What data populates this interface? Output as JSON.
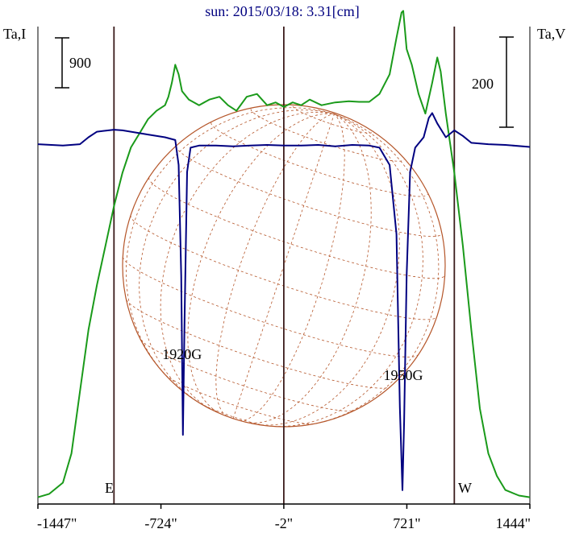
{
  "title": "sun: 2015/03/18: 3.31[cm]",
  "left_axis_label": "Ta,I",
  "right_axis_label": "Ta,V",
  "left_scale_label": "900",
  "right_scale_label": "200",
  "east_label": "E",
  "west_label": "W",
  "colors": {
    "intensity": "#1a9a1a",
    "polarization": "#000080",
    "limb_lines": "#3b1c1c",
    "disk": "#b5562a",
    "axis": "#000000",
    "title": "#000080"
  },
  "chart_data": {
    "type": "line",
    "title": "sun: 2015/03/18: 3.31[cm]",
    "x_unit": "arcsec",
    "xlim": [
      -1447,
      1444
    ],
    "x_ticks": [
      {
        "value": -1447,
        "label": "-1447\""
      },
      {
        "value": -724,
        "label": "-724\""
      },
      {
        "value": -2,
        "label": "-2\""
      },
      {
        "value": 721,
        "label": "721\""
      },
      {
        "value": 1444,
        "label": "1444\""
      }
    ],
    "vertical_lines": [
      -1000,
      -2,
      1000
    ],
    "scale_bars": {
      "left": 900,
      "right": 200
    },
    "annotations": [
      {
        "text": "1920G",
        "x": -600
      },
      {
        "text": "1950G",
        "x": 700
      }
    ],
    "series": [
      {
        "name": "Ta,I",
        "axis": "left",
        "ylim": [
          0,
          8500
        ],
        "points": [
          [
            -1447,
            120
          ],
          [
            -1380,
            180
          ],
          [
            -1300,
            380
          ],
          [
            -1250,
            900
          ],
          [
            -1200,
            2000
          ],
          [
            -1150,
            3100
          ],
          [
            -1100,
            3900
          ],
          [
            -1050,
            4600
          ],
          [
            -1000,
            5300
          ],
          [
            -950,
            5900
          ],
          [
            -900,
            6350
          ],
          [
            -850,
            6600
          ],
          [
            -800,
            6850
          ],
          [
            -750,
            7000
          ],
          [
            -700,
            7100
          ],
          [
            -680,
            7250
          ],
          [
            -660,
            7500
          ],
          [
            -640,
            7820
          ],
          [
            -620,
            7650
          ],
          [
            -600,
            7350
          ],
          [
            -560,
            7200
          ],
          [
            -500,
            7100
          ],
          [
            -440,
            7200
          ],
          [
            -380,
            7250
          ],
          [
            -330,
            7100
          ],
          [
            -280,
            7000
          ],
          [
            -220,
            7250
          ],
          [
            -160,
            7300
          ],
          [
            -100,
            7100
          ],
          [
            -50,
            7150
          ],
          [
            -2,
            7070
          ],
          [
            50,
            7150
          ],
          [
            100,
            7100
          ],
          [
            150,
            7200
          ],
          [
            220,
            7100
          ],
          [
            300,
            7150
          ],
          [
            380,
            7170
          ],
          [
            440,
            7160
          ],
          [
            500,
            7160
          ],
          [
            560,
            7300
          ],
          [
            620,
            7650
          ],
          [
            660,
            8300
          ],
          [
            690,
            8750
          ],
          [
            700,
            8780
          ],
          [
            720,
            8100
          ],
          [
            750,
            7820
          ],
          [
            790,
            7300
          ],
          [
            830,
            6950
          ],
          [
            870,
            7500
          ],
          [
            900,
            7950
          ],
          [
            920,
            7700
          ],
          [
            950,
            6950
          ],
          [
            1000,
            5900
          ],
          [
            1050,
            4600
          ],
          [
            1100,
            3100
          ],
          [
            1150,
            1700
          ],
          [
            1200,
            900
          ],
          [
            1250,
            500
          ],
          [
            1300,
            250
          ],
          [
            1380,
            150
          ],
          [
            1444,
            120
          ]
        ]
      },
      {
        "name": "Ta,V",
        "axis": "right",
        "ylim": [
          -520,
          170
        ],
        "points": [
          [
            -1447,
            0
          ],
          [
            -1300,
            -2
          ],
          [
            -1200,
            0
          ],
          [
            -1150,
            10
          ],
          [
            -1100,
            18
          ],
          [
            -1000,
            21
          ],
          [
            -950,
            20
          ],
          [
            -900,
            18
          ],
          [
            -800,
            14
          ],
          [
            -700,
            10
          ],
          [
            -640,
            6
          ],
          [
            -620,
            -30
          ],
          [
            -605,
            -190
          ],
          [
            -595,
            -420
          ],
          [
            -585,
            -250
          ],
          [
            -570,
            -40
          ],
          [
            -550,
            -5
          ],
          [
            -500,
            -2
          ],
          [
            -400,
            -2
          ],
          [
            -300,
            -3
          ],
          [
            -200,
            -2
          ],
          [
            -100,
            -1
          ],
          [
            -2,
            -2
          ],
          [
            100,
            -2
          ],
          [
            200,
            -1
          ],
          [
            300,
            -3
          ],
          [
            400,
            -1
          ],
          [
            500,
            -2
          ],
          [
            560,
            -5
          ],
          [
            620,
            -30
          ],
          [
            660,
            -130
          ],
          [
            680,
            -380
          ],
          [
            695,
            -500
          ],
          [
            705,
            -400
          ],
          [
            720,
            -190
          ],
          [
            740,
            -40
          ],
          [
            770,
            -5
          ],
          [
            820,
            10
          ],
          [
            850,
            38
          ],
          [
            870,
            45
          ],
          [
            900,
            30
          ],
          [
            950,
            10
          ],
          [
            1000,
            20
          ],
          [
            1050,
            12
          ],
          [
            1100,
            2
          ],
          [
            1200,
            0
          ],
          [
            1300,
            -1
          ],
          [
            1444,
            -4
          ]
        ]
      }
    ]
  }
}
